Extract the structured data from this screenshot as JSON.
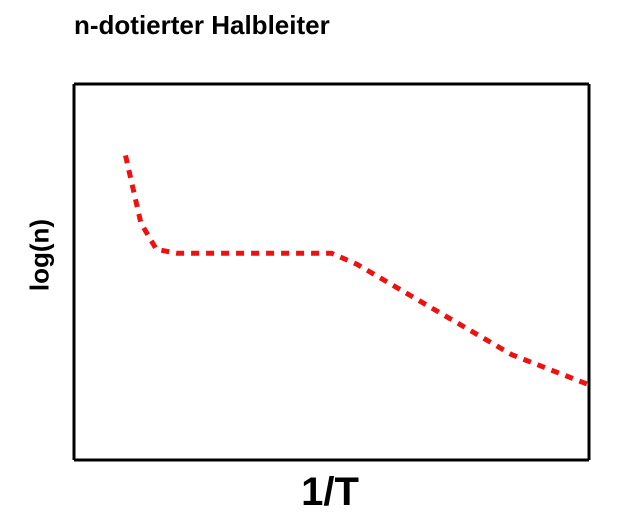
{
  "chart_data": {
    "type": "line",
    "title": "n-dotierter Halbleiter",
    "xlabel": "1/T",
    "ylabel": "log(n)",
    "xlim": [
      0,
      1
    ],
    "ylim": [
      0,
      1
    ],
    "grid": false,
    "series": [
      {
        "color": "#ee1111",
        "style": "dotted",
        "x": [
          0.1,
          0.13,
          0.16,
          0.2,
          0.35,
          0.5,
          0.55,
          0.7,
          0.85,
          1.0
        ],
        "y": [
          0.81,
          0.63,
          0.56,
          0.55,
          0.55,
          0.55,
          0.52,
          0.4,
          0.28,
          0.2
        ]
      }
    ]
  }
}
